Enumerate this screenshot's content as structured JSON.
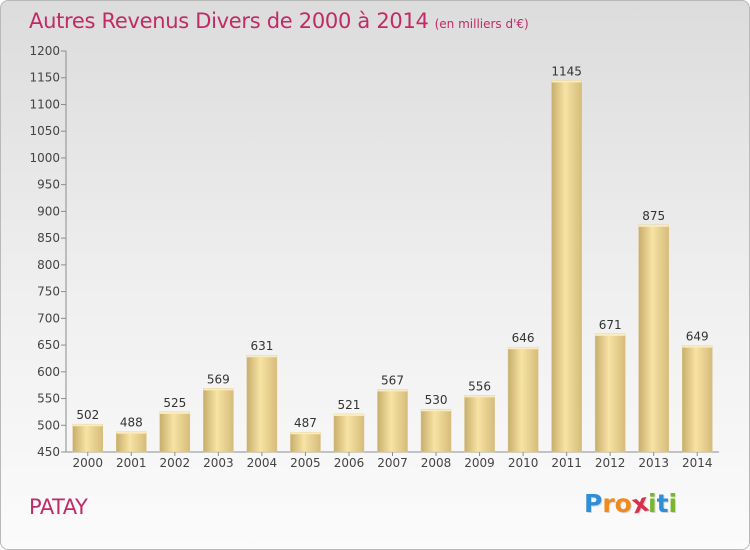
{
  "header": {
    "title": "Autres Revenus Divers de 2000 à 2014",
    "subtitle": "(en milliers d'€)"
  },
  "place": "PATAY",
  "brand": {
    "letters": [
      "P",
      "r",
      "o",
      "x",
      "i",
      "t",
      "i"
    ],
    "colors": [
      "#2f8fd6",
      "#f08a1c",
      "#f08a1c",
      "#d8304a",
      "#7ab62c",
      "#2f8fd6",
      "#7ab62c"
    ]
  },
  "colors": {
    "title": "#c12a66",
    "bar_light": "#f7e3a4",
    "bar_dark": "#c8ae6c",
    "axis": "#8c8c8c"
  },
  "chart_data": {
    "type": "bar",
    "categories": [
      "2000",
      "2001",
      "2002",
      "2003",
      "2004",
      "2005",
      "2006",
      "2007",
      "2008",
      "2009",
      "2010",
      "2011",
      "2012",
      "2013",
      "2014"
    ],
    "values": [
      502,
      488,
      525,
      569,
      631,
      487,
      521,
      567,
      530,
      556,
      646,
      1145,
      671,
      875,
      649
    ],
    "ylim": [
      450,
      1200
    ],
    "yticks": [
      450,
      500,
      550,
      600,
      650,
      700,
      750,
      800,
      850,
      900,
      950,
      1000,
      1050,
      1100,
      1150,
      1200
    ],
    "grid": false,
    "data_labels": true
  }
}
